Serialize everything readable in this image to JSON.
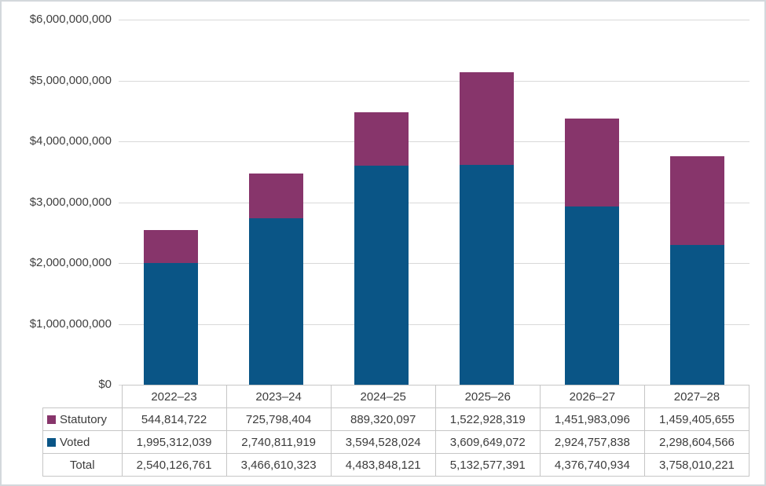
{
  "chart_data": {
    "type": "bar",
    "stacked": true,
    "title": "",
    "xlabel": "",
    "ylabel": "",
    "categories": [
      "2022–23",
      "2023–24",
      "2024–25",
      "2025–26",
      "2026–27",
      "2027–28"
    ],
    "series": [
      {
        "name": "Statutory",
        "color": "#87356B",
        "values": [
          544814722,
          725798404,
          889320097,
          1522928319,
          1451983096,
          1459405655
        ]
      },
      {
        "name": "Voted",
        "color": "#0A5586",
        "values": [
          1995312039,
          2740811919,
          3594528024,
          3609649072,
          2924757838,
          2298604566
        ]
      }
    ],
    "stack_order_bottom_to_top": [
      "Voted",
      "Statutory"
    ],
    "totals": {
      "label": "Total",
      "values": [
        2540126761,
        3466610323,
        4483848121,
        5132577391,
        4376740934,
        3758010221
      ]
    },
    "y_axis": {
      "min": 0,
      "max": 6000000000,
      "step": 1000000000,
      "tick_labels": [
        "$0",
        "$1,000,000,000",
        "$2,000,000,000",
        "$3,000,000,000",
        "$4,000,000,000",
        "$5,000,000,000",
        "$6,000,000,000"
      ]
    },
    "grid": true,
    "legend_position": "table-row-labels"
  },
  "colors": {
    "statutory": "#87356B",
    "voted": "#0A5586",
    "gridline": "#D9D9D9",
    "table_border": "#C6C6C6",
    "frame_border": "#D3D8DC",
    "text": "#3C3C3C",
    "background": "#FFFFFF"
  }
}
